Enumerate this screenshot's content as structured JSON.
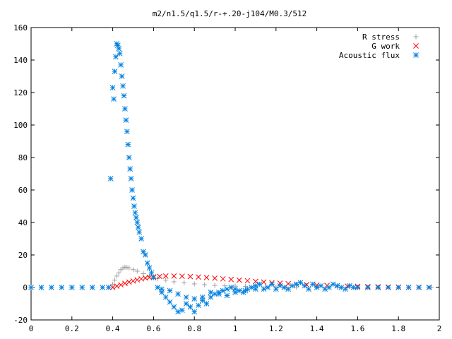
{
  "chart_data": {
    "type": "scatter",
    "title": "m2/n1.5/q1.5/r-+.20-j104/M0.3/512",
    "xlabel": "",
    "ylabel": "",
    "xlim": [
      0,
      2
    ],
    "ylim": [
      -20,
      160
    ],
    "xticks": [
      0,
      0.2,
      0.4,
      0.6,
      0.8,
      1,
      1.2,
      1.4,
      1.6,
      1.8,
      2
    ],
    "xtick_labels": [
      "0",
      "0.2",
      "0.4",
      "0.6",
      "0.8",
      "1",
      "1.2",
      "1.4",
      "1.6",
      "1.8",
      "2"
    ],
    "yticks": [
      -20,
      0,
      20,
      40,
      60,
      80,
      100,
      120,
      140,
      160
    ],
    "ytick_labels": [
      "-20",
      "0",
      "20",
      "40",
      "60",
      "80",
      "100",
      "120",
      "140",
      "160"
    ],
    "grid": false,
    "legend_position": "top-right",
    "series": [
      {
        "name": "R stress",
        "color": "#a0a0a0",
        "marker": "plus",
        "x": [
          0.0,
          0.1,
          0.2,
          0.3,
          0.38,
          0.4,
          0.41,
          0.42,
          0.43,
          0.44,
          0.45,
          0.46,
          0.47,
          0.48,
          0.5,
          0.52,
          0.55,
          0.58,
          0.62,
          0.66,
          0.7,
          0.75,
          0.8,
          0.85,
          0.9,
          0.95,
          1.0,
          1.05,
          1.1,
          1.15,
          1.2,
          1.25,
          1.3,
          1.4,
          1.5,
          1.6,
          1.7,
          1.8,
          1.9,
          1.96
        ],
        "y": [
          0,
          0,
          0,
          0,
          0,
          2,
          4.5,
          7,
          9,
          11,
          12,
          12.5,
          12.3,
          12,
          11,
          10,
          8.5,
          7,
          5.5,
          4.5,
          3.5,
          2.8,
          2.2,
          1.7,
          1.3,
          1.0,
          0.8,
          0.6,
          0.5,
          0.4,
          0.3,
          0.25,
          0.2,
          0.15,
          0.1,
          0.1,
          0.05,
          0.05,
          0.05,
          0.05
        ]
      },
      {
        "name": "G work",
        "color": "#ff0000",
        "marker": "cross",
        "x": [
          0.4,
          0.42,
          0.44,
          0.46,
          0.48,
          0.5,
          0.52,
          0.54,
          0.56,
          0.58,
          0.6,
          0.63,
          0.66,
          0.7,
          0.74,
          0.78,
          0.82,
          0.86,
          0.9,
          0.94,
          0.98,
          1.02,
          1.06,
          1.1,
          1.14,
          1.18,
          1.22,
          1.26,
          1.3,
          1.35,
          1.4,
          1.45,
          1.5,
          1.55,
          1.6,
          1.65,
          1.7,
          1.75,
          1.8,
          1.85,
          1.9,
          1.95
        ],
        "y": [
          0,
          0.8,
          1.6,
          2.5,
          3.3,
          4.0,
          4.7,
          5.3,
          5.8,
          6.2,
          6.5,
          6.8,
          7.0,
          7.0,
          6.9,
          6.7,
          6.4,
          6.1,
          5.7,
          5.3,
          4.9,
          4.5,
          4.1,
          3.7,
          3.3,
          2.9,
          2.6,
          2.3,
          2.0,
          1.7,
          1.4,
          1.2,
          1.0,
          0.8,
          0.7,
          0.5,
          0.4,
          0.3,
          0.2,
          0.1,
          0.1,
          0.05
        ]
      },
      {
        "name": "Acoustic flux",
        "color": "#0080e0",
        "marker": "star",
        "x": [
          0.0,
          0.05,
          0.1,
          0.15,
          0.2,
          0.25,
          0.3,
          0.35,
          0.38,
          0.39,
          0.4,
          0.405,
          0.41,
          0.415,
          0.42,
          0.425,
          0.43,
          0.435,
          0.44,
          0.445,
          0.45,
          0.455,
          0.46,
          0.465,
          0.47,
          0.475,
          0.48,
          0.485,
          0.49,
          0.495,
          0.5,
          0.505,
          0.51,
          0.515,
          0.52,
          0.525,
          0.53,
          0.54,
          0.55,
          0.56,
          0.57,
          0.58,
          0.59,
          0.6,
          0.62,
          0.64,
          0.66,
          0.68,
          0.7,
          0.72,
          0.74,
          0.76,
          0.78,
          0.8,
          0.82,
          0.84,
          0.86,
          0.88,
          0.9,
          0.92,
          0.94,
          0.96,
          0.98,
          1.0,
          1.02,
          1.04,
          1.06,
          1.08,
          1.1,
          1.12,
          1.14,
          1.16,
          1.18,
          1.2,
          1.22,
          1.24,
          1.26,
          1.28,
          1.3,
          1.32,
          1.34,
          1.36,
          1.38,
          1.4,
          1.42,
          1.44,
          1.46,
          1.48,
          1.5,
          1.52,
          1.54,
          1.56,
          1.58,
          1.6,
          1.65,
          1.7,
          1.75,
          1.8,
          1.85,
          1.9,
          1.95,
          0.64,
          0.68,
          0.72,
          0.76,
          0.8,
          0.84,
          0.88,
          0.92,
          0.96,
          1.0,
          1.05,
          1.1
        ],
        "y": [
          0,
          0,
          0,
          0,
          0,
          0,
          0,
          0,
          0,
          67,
          123,
          116,
          133,
          142,
          150,
          149,
          147,
          144,
          137,
          130,
          124,
          118,
          110,
          103,
          96,
          88,
          80,
          73,
          67,
          60,
          55,
          50,
          46,
          43,
          40,
          37,
          34,
          30,
          22,
          20,
          15,
          12,
          9,
          6,
          0,
          -3,
          -6,
          -9,
          -12,
          -15,
          -14,
          -10,
          -12,
          -15,
          -11,
          -8,
          -10,
          -6,
          -4,
          -3,
          -2,
          -1,
          0,
          -1,
          -2,
          -3,
          -1,
          0,
          1,
          2,
          -1,
          0,
          2,
          -1,
          1,
          0,
          -1,
          1,
          2,
          3,
          1,
          -1,
          2,
          0,
          1,
          -1,
          0,
          2,
          1,
          0,
          -1,
          1,
          0,
          0,
          0,
          0,
          0,
          0,
          0,
          0,
          0,
          -1,
          -2,
          -4,
          -6,
          -7,
          -6,
          -3,
          -4,
          -5,
          -3,
          -2,
          -1
        ]
      }
    ]
  }
}
